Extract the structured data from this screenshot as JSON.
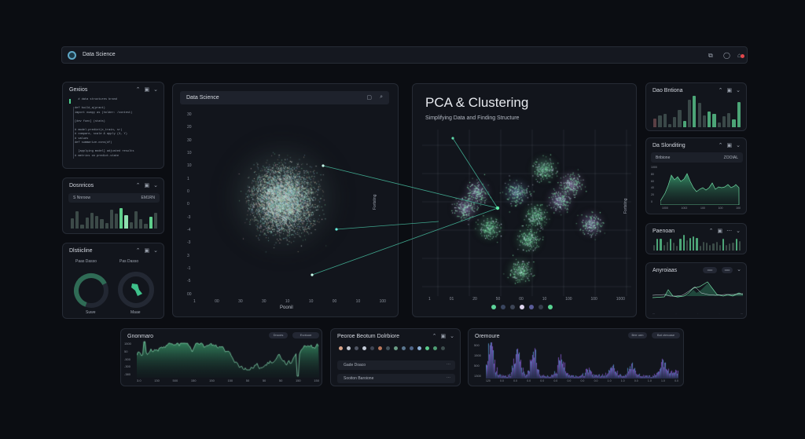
{
  "app": {
    "title": "Data Science",
    "icons": [
      "expand-icon",
      "search-icon",
      "notification-icon"
    ]
  },
  "panels": {
    "code": {
      "title": "Gexiios",
      "lines": [
        "  # data structures brand",
        "",
        "def build_a(pract)",
        "import numpy as (holder: /contest)",
        "",
        "[dev func] (stats)",
        "",
        "# model.predict(x_train, sr)",
        "# compare, scale & apply (X, Y)",
        "# values",
        "def summarize.cons(df)",
        "",
        "  [applying model] adjusted results",
        "# metrics on predict.state"
      ]
    },
    "bars_left": {
      "title": "Dosnricos",
      "filter_label": "S Nnroow",
      "filter_value": "EM1RN",
      "values": [
        40,
        65,
        14,
        42,
        58,
        48,
        35,
        22,
        70,
        56,
        76,
        50,
        24,
        64,
        36,
        18,
        45,
        58
      ]
    },
    "gauges": {
      "title": "Dlstiicline",
      "gauge1_label": "Paas Dasso",
      "gauge1_caption": "Suwe",
      "gauge1_pct": 62,
      "gauge2_label": "Pas Dasso",
      "gauge2_caption": "Maae",
      "gauge2_pct": 100
    },
    "scatter": {
      "search_value": "Data Science",
      "x_label": "Poonil",
      "y_label": "Fortsting",
      "y_ticks": [
        "30",
        "20",
        "30",
        "10",
        "10",
        "1",
        "0",
        "0",
        "-3",
        "-4",
        "-3",
        "3",
        "-1",
        "-5",
        "00"
      ],
      "x_ticks": [
        "1",
        "00",
        "30",
        "30",
        "10",
        "10",
        "00",
        "10",
        "100"
      ]
    },
    "pca": {
      "title": "PCA & Clustering",
      "subtitle": "Simplifying Data and Finding Structure",
      "y_label": "Fortsting",
      "x_ticks": [
        "1",
        "01",
        "20",
        "50",
        "00",
        "10",
        "100",
        "100",
        "1000"
      ],
      "legend_colors": [
        "#5ed39a",
        "#3a4660",
        "#3d4556",
        "#e1d6f0",
        "#5a5c99",
        "#353c4a",
        "#58d491"
      ]
    },
    "r1": {
      "title": "Dao Bntiona",
      "values": [
        30,
        42,
        48,
        10,
        35,
        60,
        22,
        95,
        110,
        86,
        40,
        54,
        46,
        16,
        38,
        50,
        28,
        88
      ],
      "highlight": [
        1,
        0,
        0,
        0,
        0,
        0,
        1,
        0,
        1,
        0,
        0,
        1,
        1,
        0,
        0,
        0,
        1,
        1
      ]
    },
    "r2": {
      "title": "Da Slonditing",
      "filter_label": "Bribione",
      "filter_value": "ZOOIAL",
      "y_ticks": [
        "1000",
        "80",
        "60",
        "40",
        "20",
        "0"
      ],
      "x_ticks": [
        "1000",
        "1002",
        "100",
        "100",
        "100"
      ]
    },
    "r3": {
      "title": "Paenoan",
      "values": [
        20,
        40,
        40,
        18,
        30,
        40,
        28,
        16,
        40,
        55,
        36,
        44,
        50,
        45,
        16,
        30,
        28,
        18,
        24,
        30,
        20,
        40,
        18,
        25,
        28,
        40,
        34
      ]
    },
    "r4": {
      "title": "Anyroiaas",
      "pill1": "ooo",
      "pill2": "ooo"
    },
    "bottom1": {
      "title": "Gnonmaro",
      "pill1": "Droces",
      "pill2": "Evotuoe",
      "y_ticks": [
        "1500",
        "50",
        "-500",
        "-300",
        "-380"
      ],
      "x_ticks": [
        "3.0",
        "130",
        "500",
        "150",
        "150",
        "150",
        "50",
        "50",
        "50",
        "150",
        "150"
      ]
    },
    "bottom2": {
      "title": "Peoroe Beotum Dolrbiore",
      "row1": "Gade Doaco",
      "row2": "Sooiton Baroione",
      "dot_colors": [
        "#d9a489",
        "#bfc5d0",
        "#505664",
        "#c3cad6",
        "#3e4452",
        "#b9785c",
        "#41515a",
        "#6b9e86",
        "#5a7690",
        "#4e6487",
        "#8fb2d8",
        "#59cc8b",
        "#4f9e74",
        "#3e4e4e"
      ]
    },
    "bottom3": {
      "title": "Oremoure",
      "pill1": "Brie oen",
      "pill2": "Bat ctmoase",
      "y_ticks": [
        "500",
        "1500",
        "500",
        "1300"
      ],
      "x_ticks": [
        "120",
        "0.0",
        "0.0",
        "0.0",
        "0.0",
        "0.0",
        "0.0",
        "0.0",
        "0.0",
        "1.0",
        "1.0",
        "0.0",
        "1.0",
        "1.0",
        "0.0"
      ]
    }
  },
  "colors": {
    "accent": "#4ed08d",
    "purple": "#8a5bd6",
    "blue": "#5aa0d8",
    "bg": "#0b0d12",
    "panel": "#12151c"
  }
}
